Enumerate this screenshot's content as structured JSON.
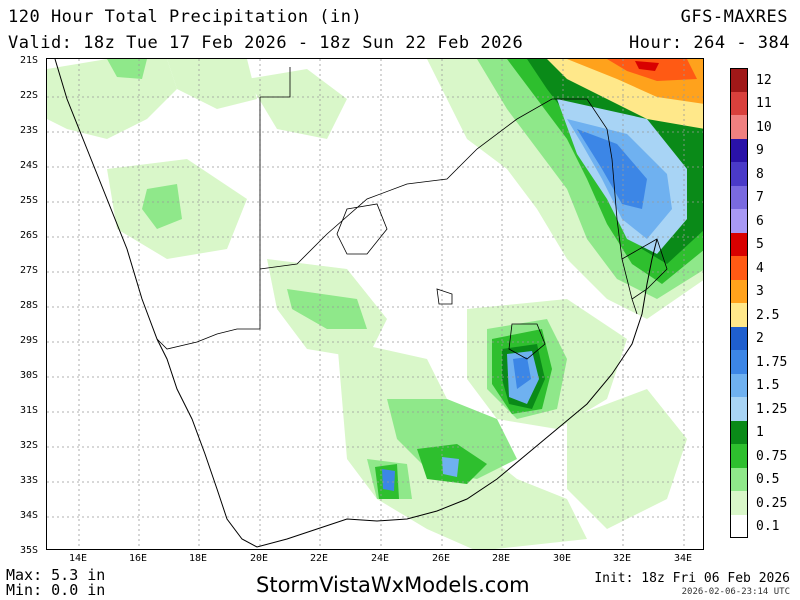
{
  "header": {
    "title": "120 Hour Total Precipitation (in)",
    "model": "GFS-MAXRES",
    "valid": "Valid: 18z Tue 17 Feb 2026 - 18z Sun 22 Feb 2026",
    "hours": "Hour: 264 - 384"
  },
  "axes": {
    "lat_labels": [
      "21S",
      "22S",
      "23S",
      "24S",
      "25S",
      "26S",
      "27S",
      "28S",
      "29S",
      "30S",
      "31S",
      "32S",
      "33S",
      "34S",
      "35S"
    ],
    "lon_labels": [
      "14E",
      "16E",
      "18E",
      "20E",
      "22E",
      "24E",
      "26E",
      "28E",
      "30E",
      "32E",
      "34E"
    ]
  },
  "legend": [
    {
      "label": "0.1",
      "color": "#ffffff"
    },
    {
      "label": "0.25",
      "color": "#d9f7c9"
    },
    {
      "label": "0.5",
      "color": "#8fe88a"
    },
    {
      "label": "0.75",
      "color": "#2ebf2e"
    },
    {
      "label": "1",
      "color": "#0a8a18"
    },
    {
      "label": "1.25",
      "color": "#a8d4f5"
    },
    {
      "label": "1.5",
      "color": "#6fb1f0"
    },
    {
      "label": "1.75",
      "color": "#3c86e6"
    },
    {
      "label": "2",
      "color": "#1f5fcf"
    },
    {
      "label": "2.5",
      "color": "#ffe88a"
    },
    {
      "label": "3",
      "color": "#ffa21c"
    },
    {
      "label": "4",
      "color": "#ff5a14"
    },
    {
      "label": "5",
      "color": "#d80000"
    },
    {
      "label": "6",
      "color": "#a899f5"
    },
    {
      "label": "7",
      "color": "#7a6ae0"
    },
    {
      "label": "8",
      "color": "#4a3ac8"
    },
    {
      "label": "9",
      "color": "#2a12a8"
    },
    {
      "label": "10",
      "color": "#f08080"
    },
    {
      "label": "11",
      "color": "#d9403c"
    },
    {
      "label": "12",
      "color": "#a01818"
    }
  ],
  "footer": {
    "max": "Max: 5.3 in",
    "min": "Min: 0.0 in",
    "site": "StormVistaWxModels.com",
    "init": "Init: 18z Fri 06 Feb 2026",
    "stamp": "2026-02-06-23:14 UTC"
  }
}
